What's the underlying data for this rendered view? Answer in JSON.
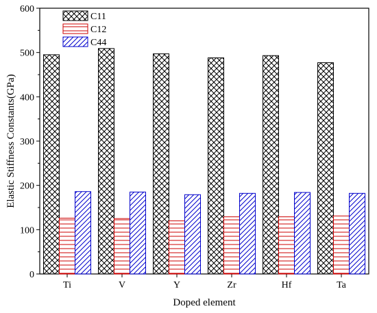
{
  "chart_data": {
    "type": "bar",
    "title": "",
    "xlabel": "Doped element",
    "ylabel": "Elastic Stiffness Constants(GPa)",
    "categories": [
      "Ti",
      "V",
      "Y",
      "Zr",
      "Hf",
      "Ta"
    ],
    "ylim": [
      0,
      600
    ],
    "yticks": [
      0,
      100,
      200,
      300,
      400,
      500,
      600
    ],
    "grid": false,
    "legend_position": "top-left",
    "series": [
      {
        "name": "C11",
        "values": [
          495,
          509,
          497,
          488,
          493,
          477
        ],
        "color": "#000000",
        "pattern": "crosshatch"
      },
      {
        "name": "C12",
        "values": [
          126,
          125,
          120,
          129,
          129,
          131
        ],
        "color": "#cc0000",
        "pattern": "horizontal"
      },
      {
        "name": "C44",
        "values": [
          186,
          185,
          179,
          182,
          184,
          182
        ],
        "color": "#0000cc",
        "pattern": "diagonal"
      }
    ]
  }
}
